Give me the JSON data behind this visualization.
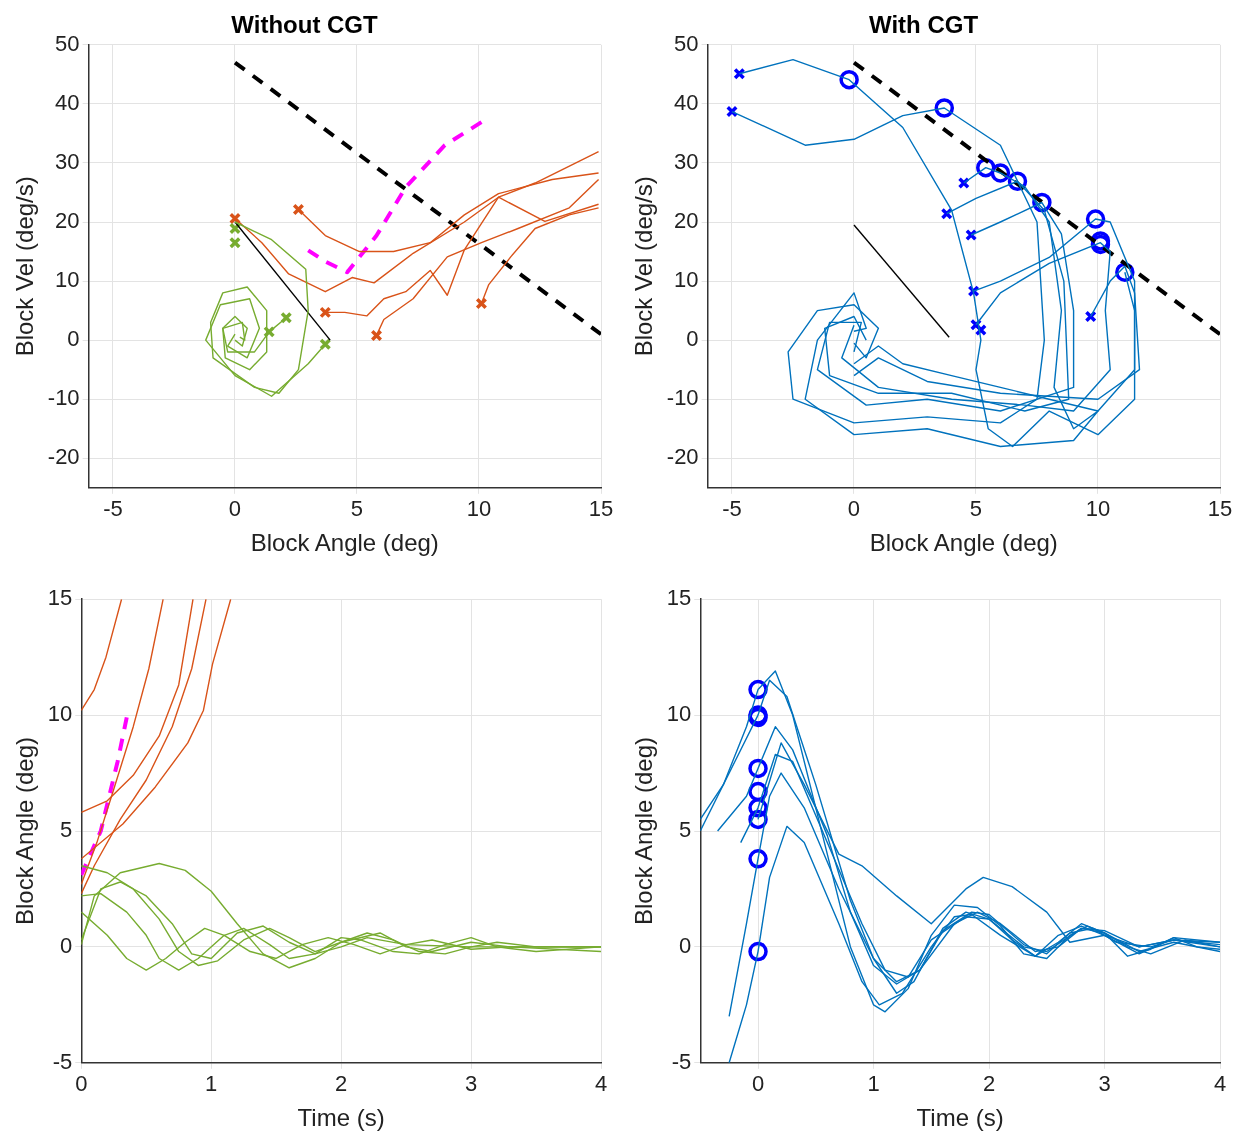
{
  "chart_data": [
    {
      "type": "line",
      "title": "Without CGT",
      "xlabel": "Block Angle (deg)",
      "ylabel": "Block Vel (deg/s)",
      "xlim": [
        -6,
        15
      ],
      "xticks": [
        -5,
        0,
        5,
        10,
        15
      ],
      "ylim": [
        -25,
        50
      ],
      "yticks": [
        -20,
        -10,
        0,
        10,
        20,
        30,
        40,
        50
      ],
      "grid": true,
      "series": [
        {
          "type": "line",
          "color": "#77ac30",
          "x": [
            0,
            1.5,
            2.9,
            3.0,
            2.6,
            1.8,
            0.8,
            -0.9,
            -1,
            -0.5,
            0.5,
            1.3,
            1.3,
            0.6,
            -0.4,
            -0.5,
            0,
            0.5,
            0.3,
            0
          ],
          "values": [
            20,
            17,
            12,
            5,
            -5,
            -9,
            -8,
            -3,
            3,
            8,
            9,
            5,
            -2,
            -5,
            -3,
            2,
            4,
            2,
            -1,
            0
          ]
        },
        {
          "type": "line",
          "color": "#77ac30",
          "x": [
            3.7,
            3.0,
            1.5,
            0,
            -1.2,
            -0.6,
            0.6,
            1.0,
            0.5,
            -0.3,
            0
          ],
          "values": [
            -0.7,
            -4,
            -9.5,
            -6,
            0,
            6,
            7,
            2,
            -3,
            -1,
            1
          ]
        },
        {
          "type": "line",
          "color": "#77ac30",
          "x": [
            2.1,
            1.4,
            0.8,
            -0.3,
            -0.5,
            0.3,
            0.4,
            0.2
          ],
          "values": [
            3.8,
            1.4,
            -2,
            -2,
            2,
            3,
            0,
            0.5
          ]
        },
        {
          "type": "line",
          "color": "#d95319",
          "x": [
            0,
            1.1,
            2.2,
            3.7,
            4.8,
            5.7,
            7.3,
            9.4,
            10.8,
            12.3,
            14.9
          ],
          "values": [
            20.6,
            16.5,
            11.2,
            8.2,
            10.6,
            9.7,
            14.7,
            20,
            24.2,
            26.6,
            31.9
          ]
        },
        {
          "type": "line",
          "color": "#d95319",
          "x": [
            2.6,
            3.7,
            5.1,
            6.5,
            8.0,
            9.4,
            10.8,
            13,
            14.9
          ],
          "values": [
            22.1,
            17.7,
            15,
            15,
            16.5,
            21.2,
            24.8,
            27.2,
            28.3
          ]
        },
        {
          "type": "line",
          "color": "#d95319",
          "x": [
            3.7,
            4.5,
            5.4,
            6.1,
            7.0,
            8.0,
            8.7,
            9.4,
            10.8,
            12.7,
            14.9
          ],
          "values": [
            4.7,
            4.7,
            4.1,
            7.0,
            8.2,
            11.8,
            7.6,
            15.3,
            24.2,
            20.1,
            23
          ]
        },
        {
          "type": "line",
          "color": "#d95319",
          "x": [
            5.8,
            6.1,
            7.3,
            8.7,
            10.1,
            11.6,
            13.7,
            14.9
          ],
          "values": [
            0.8,
            3.5,
            7.0,
            14.1,
            16.5,
            18.9,
            22.4,
            27.2
          ]
        },
        {
          "type": "line",
          "color": "#d95319",
          "x": [
            10.1,
            10.4,
            11.3,
            12.3,
            13.7,
            14.9
          ],
          "values": [
            6.2,
            9.4,
            14.1,
            18.9,
            21.2,
            22.4
          ]
        },
        {
          "type": "line",
          "color": "#000000",
          "line_style": "dashed",
          "x": [
            0,
            15
          ],
          "values": [
            47,
            1
          ]
        },
        {
          "type": "line",
          "color": "#000000",
          "x": [
            0,
            3.9
          ],
          "values": [
            20,
            0
          ]
        },
        {
          "type": "line",
          "color": "#ff00ff",
          "line_style": "dashed",
          "x": [
            3.0,
            3.7,
            4.6,
            5.8,
            7.0,
            8.6,
            10.1
          ],
          "values": [
            15.2,
            13.3,
            11.5,
            17.7,
            25.9,
            33,
            36.9
          ]
        },
        {
          "type": "scatter",
          "color": "#77ac30",
          "marker": "cross",
          "x": [
            0,
            0,
            1.4,
            2.1,
            3.7
          ],
          "values": [
            18.9,
            16.5,
            1.4,
            3.8,
            -0.7
          ]
        },
        {
          "type": "scatter",
          "color": "#d95319",
          "marker": "cross",
          "x": [
            0,
            2.6,
            3.7,
            5.8,
            10.1
          ],
          "values": [
            20.6,
            22.1,
            4.7,
            0.8,
            6.2
          ]
        }
      ]
    },
    {
      "type": "line",
      "title": "With CGT",
      "xlabel": "Block Angle (deg)",
      "ylabel": "Block Vel (deg/s)",
      "xlim": [
        -6,
        15
      ],
      "xticks": [
        -5,
        0,
        5,
        10,
        15
      ],
      "ylim": [
        -25,
        50
      ],
      "yticks": [
        -20,
        -10,
        0,
        10,
        20,
        30,
        40,
        50
      ],
      "grid": true,
      "series": [
        {
          "type": "line",
          "color": "#0072bd",
          "x": [
            -4.7,
            -2.5,
            -0.2,
            2,
            4,
            4.9,
            5.2,
            5,
            5.5,
            6.5,
            8,
            10,
            11.5,
            11.5,
            11.1
          ],
          "values": [
            45.1,
            47.5,
            44.1,
            36,
            22,
            8,
            0,
            -5,
            -15,
            -18,
            -12,
            -16,
            -10,
            5,
            11.5
          ]
        },
        {
          "type": "line",
          "color": "#0072bd",
          "x": [
            -5,
            -2,
            0,
            2,
            3.7,
            6,
            7.5,
            7.8,
            7.5,
            6,
            3,
            0,
            -2.5,
            -2.7,
            -1.5,
            0,
            1,
            0.5,
            0
          ],
          "values": [
            38.7,
            33,
            34,
            38,
            39.3,
            33,
            20,
            0,
            -10,
            -14,
            -13,
            -14,
            -10,
            -2,
            5,
            6,
            2,
            -3,
            -0.5
          ]
        },
        {
          "type": "line",
          "color": "#0072bd",
          "x": [
            4.5,
            5.4,
            6.0,
            7,
            8,
            8.5,
            8.2,
            9,
            10,
            9,
            6,
            3,
            0,
            -2,
            -1.5,
            0,
            0.5,
            0
          ],
          "values": [
            26.6,
            29.2,
            28.3,
            26,
            20,
            5,
            -8,
            -15,
            -12,
            -17,
            -18,
            -15,
            -16,
            -10,
            0,
            8,
            2,
            1.5
          ]
        },
        {
          "type": "line",
          "color": "#0072bd",
          "x": [
            3.8,
            5,
            6.7,
            7.8,
            8.6,
            8.8,
            7,
            4,
            1,
            -1,
            -1.2,
            0,
            0.5
          ],
          "values": [
            21.4,
            24,
            26.9,
            22,
            10,
            -10,
            -12,
            -9,
            -9,
            -6,
            2,
            4,
            0
          ]
        },
        {
          "type": "line",
          "color": "#0072bd",
          "x": [
            4.8,
            6,
            7.7,
            8.5,
            9,
            9,
            6,
            3,
            0.5,
            -1.5,
            -1,
            0.3,
            0
          ],
          "values": [
            17.8,
            20,
            23.3,
            18,
            5,
            -8,
            -12,
            -10,
            -11,
            -5,
            3,
            3,
            -2
          ]
        },
        {
          "type": "line",
          "color": "#0072bd",
          "x": [
            4.9,
            6,
            8,
            9.9,
            10.5,
            11.5,
            11.5,
            10,
            8,
            6,
            4,
            2,
            1,
            0
          ],
          "values": [
            8.3,
            10,
            14,
            20.5,
            20,
            10,
            -5,
            -12,
            -10,
            -8,
            -6,
            -4,
            -1,
            -4
          ]
        },
        {
          "type": "line",
          "color": "#0072bd",
          "x": [
            5.0,
            6,
            8,
            10.1,
            10.5,
            10.3,
            10.5,
            9,
            7,
            4,
            1,
            -0.5,
            0
          ],
          "values": [
            2.6,
            8,
            13,
            16.5,
            15,
            5,
            -5,
            -12,
            -11,
            -10,
            -8,
            -3,
            2.5
          ]
        },
        {
          "type": "line",
          "color": "#0072bd",
          "x": [
            9.7,
            10.5,
            11.1,
            11.5,
            11.7,
            10,
            6,
            3,
            1,
            0
          ],
          "values": [
            4,
            10,
            12.5,
            8,
            -5,
            -10,
            -9,
            -7,
            -3,
            -6
          ]
        },
        {
          "type": "line",
          "color": "#000000",
          "line_style": "dashed",
          "x": [
            0,
            15
          ],
          "values": [
            47,
            1
          ]
        },
        {
          "type": "line",
          "color": "#000000",
          "x": [
            0,
            3.9
          ],
          "values": [
            19.5,
            0.5
          ]
        },
        {
          "type": "scatter",
          "color": "#0000ff",
          "marker": "cross",
          "x": [
            -4.7,
            -5.0,
            4.5,
            3.8,
            4.8,
            4.9,
            5.0,
            5.2,
            9.7
          ],
          "values": [
            45.1,
            38.7,
            26.6,
            21.4,
            17.8,
            8.3,
            2.6,
            1.7,
            4.0
          ]
        },
        {
          "type": "scatter",
          "color": "#0000ff",
          "marker": "circle",
          "x": [
            -0.2,
            3.7,
            5.4,
            6.0,
            6.7,
            7.7,
            9.9,
            10.1,
            10.1,
            11.1
          ],
          "values": [
            44.1,
            39.3,
            29.2,
            28.3,
            26.9,
            23.3,
            20.5,
            16.8,
            16.2,
            11.5
          ]
        }
      ]
    },
    {
      "type": "line",
      "xlabel": "Time (s)",
      "ylabel": "Block Angle (deg)",
      "xlim": [
        0,
        4
      ],
      "xticks": [
        0,
        1,
        2,
        3,
        4
      ],
      "ylim": [
        -5,
        15
      ],
      "yticks": [
        -5,
        0,
        5,
        10,
        15
      ],
      "grid": true,
      "series": [
        {
          "type": "line",
          "color": "#77ac30",
          "x": [
            0,
            0.1,
            0.3,
            0.6,
            0.8,
            1.0,
            1.2,
            1.4,
            1.6,
            1.8,
            2.0,
            2.2,
            2.4,
            2.6,
            2.8,
            3.0,
            3.2,
            3.5,
            4
          ],
          "values": [
            0.1,
            2.2,
            3.2,
            3.6,
            3.3,
            2.4,
            1.0,
            -0.3,
            -0.9,
            -0.5,
            0.2,
            0.6,
            0.3,
            -0.2,
            -0.3,
            0,
            0.2,
            0,
            0
          ]
        },
        {
          "type": "line",
          "color": "#77ac30",
          "x": [
            0,
            0.2,
            0.4,
            0.6,
            0.75,
            0.9,
            1.05,
            1.25,
            1.45,
            1.6,
            1.8,
            2.0,
            2.3,
            2.5,
            2.7,
            3,
            3.3,
            4
          ],
          "values": [
            3.5,
            3.2,
            2.5,
            1.2,
            -0.2,
            -0.8,
            -0.6,
            0.3,
            0.8,
            0.4,
            -0.2,
            0.2,
            0.6,
            0,
            -0.2,
            0.2,
            0,
            0
          ]
        },
        {
          "type": "line",
          "color": "#77ac30",
          "x": [
            0,
            0.15,
            0.35,
            0.5,
            0.6,
            0.75,
            0.9,
            1.1,
            1.25,
            1.45,
            1.6,
            1.8,
            2.0,
            2.15,
            2.4,
            2.6,
            2.8,
            3.0,
            3.2,
            3.5,
            4
          ],
          "values": [
            2.2,
            2.3,
            1.5,
            0.5,
            -0.5,
            -1.0,
            -0.5,
            0.5,
            0.8,
            0.1,
            -0.5,
            -0.3,
            0.4,
            0.3,
            -0.2,
            -0.3,
            0.1,
            0.4,
            0,
            -0.2,
            0
          ]
        },
        {
          "type": "line",
          "color": "#77ac30",
          "x": [
            0,
            0.2,
            0.35,
            0.5,
            0.65,
            0.8,
            0.95,
            1.1,
            1.3,
            1.5,
            1.7,
            1.9,
            2.1,
            2.3,
            2.5,
            2.7,
            3.0,
            3.3,
            4
          ],
          "values": [
            1.5,
            0.5,
            -0.5,
            -1.0,
            -0.5,
            0.2,
            0.8,
            0.5,
            -0.2,
            -0.5,
            0.1,
            0.4,
            0.1,
            -0.3,
            0.1,
            0.3,
            -0.1,
            0,
            -0.2
          ]
        },
        {
          "type": "line",
          "color": "#77ac30",
          "x": [
            0,
            0.15,
            0.3,
            0.5,
            0.7,
            0.85,
            1.0,
            1.2,
            1.4,
            1.6,
            1.8,
            2.0,
            2.2,
            2.5,
            3.0,
            4
          ],
          "values": [
            0.3,
            2.5,
            2.8,
            2.2,
            1,
            -0.3,
            -0.5,
            0.6,
            0.9,
            0.2,
            -0.3,
            0,
            0.4,
            0.1,
            0,
            0
          ]
        },
        {
          "type": "line",
          "color": "#d95319",
          "x": [
            0,
            0.1,
            0.19,
            0.31
          ],
          "values": [
            10.2,
            11.1,
            12.5,
            15
          ]
        },
        {
          "type": "line",
          "color": "#d95319",
          "x": [
            0,
            0.2,
            0.4,
            0.6,
            0.75,
            0.86
          ],
          "values": [
            5.8,
            6.3,
            7.4,
            9.1,
            11.3,
            15
          ]
        },
        {
          "type": "line",
          "color": "#d95319",
          "x": [
            0,
            0.32,
            0.57,
            0.82,
            0.94,
            1.01,
            1.15
          ],
          "values": [
            3.8,
            5.3,
            6.9,
            8.8,
            10.2,
            12.2,
            15
          ]
        },
        {
          "type": "line",
          "color": "#d95319",
          "x": [
            0,
            0.12,
            0.25,
            0.4,
            0.52,
            0.63
          ],
          "values": [
            2.7,
            4.5,
            6.8,
            9.5,
            12,
            15
          ]
        },
        {
          "type": "line",
          "color": "#d95319",
          "x": [
            0,
            0.1,
            0.3,
            0.5,
            0.7,
            0.85,
            0.96
          ],
          "values": [
            2.3,
            3.5,
            5.5,
            7.2,
            9.5,
            12,
            15
          ]
        },
        {
          "type": "line",
          "color": "#ff00ff",
          "line_style": "dashed",
          "x": [
            0,
            0.15,
            0.28,
            0.35
          ],
          "values": [
            3.1,
            5,
            8,
            9.9
          ]
        }
      ]
    },
    {
      "type": "line",
      "xlabel": "Time (s)",
      "ylabel": "Block Angle (deg)",
      "xlim": [
        -0.5,
        4
      ],
      "xticks": [
        0,
        1,
        2,
        3,
        4
      ],
      "ylim": [
        -5,
        15
      ],
      "yticks": [
        -5,
        0,
        5,
        10,
        15
      ],
      "grid": true,
      "series": [
        {
          "type": "line",
          "color": "#0072bd",
          "x": [
            -0.5,
            -0.3,
            -0.1,
            0,
            0.15,
            0.3,
            0.5,
            0.8,
            1.0,
            1.1,
            1.3,
            1.5,
            1.7,
            1.9,
            2.1,
            2.3,
            2.5,
            2.7,
            2.85,
            3.0,
            3.2,
            3.4,
            3.6,
            3.8,
            4
          ],
          "values": [
            5.5,
            7,
            9.5,
            11.1,
            11.9,
            10,
            6,
            0,
            -2.5,
            -2.8,
            -1.8,
            0.5,
            1.8,
            1.7,
            0.9,
            -0.3,
            -0.5,
            0.5,
            0.9,
            0.6,
            -0.4,
            -0.1,
            0.4,
            0,
            -0.1
          ]
        },
        {
          "type": "line",
          "color": "#0072bd",
          "x": [
            -0.5,
            -0.2,
            0,
            0.1,
            0.25,
            0.5,
            0.8,
            1.0,
            1.2,
            1.35,
            1.6,
            1.8,
            2.0,
            2.2,
            2.4,
            2.6,
            2.8,
            3.0,
            3.2,
            3.4,
            3.7,
            4
          ],
          "values": [
            5,
            8,
            10,
            11.5,
            10.8,
            7,
            2,
            -0.5,
            -2,
            -1.5,
            0.8,
            1.5,
            1.2,
            0.3,
            -0.4,
            0.2,
            1,
            0.6,
            0,
            -0.3,
            0.3,
            0
          ]
        },
        {
          "type": "line",
          "color": "#0072bd",
          "x": [
            -0.35,
            -0.1,
            0,
            0.15,
            0.3,
            0.6,
            0.8,
            1.0,
            1.2,
            1.4,
            1.6,
            1.85,
            2.0,
            2.3,
            2.5,
            2.7,
            2.9,
            3.1,
            3.4,
            3.6,
            4
          ],
          "values": [
            5,
            6.5,
            7.7,
            9.5,
            8.5,
            4.8,
            1.5,
            -0.8,
            -1.6,
            -1,
            0.7,
            1.5,
            1.4,
            0.1,
            -0.3,
            0.6,
            0.8,
            0.2,
            0,
            0.3,
            0.1
          ]
        },
        {
          "type": "line",
          "color": "#0072bd",
          "x": [
            -0.15,
            0,
            0.15,
            0.3,
            0.6,
            0.9,
            1.1,
            1.3,
            1.5,
            1.8,
            2.0,
            2.3,
            2.5,
            2.8,
            3.0,
            3.3,
            3.6,
            4
          ],
          "values": [
            4.5,
            6.0,
            8.3,
            8,
            4.5,
            1,
            -1,
            -1.3,
            0.3,
            1.3,
            1.2,
            0,
            -0.2,
            0.8,
            0.6,
            -0.2,
            0.2,
            -0.2
          ]
        },
        {
          "type": "line",
          "color": "#0072bd",
          "x": [
            -0.25,
            -0.1,
            0,
            0.1,
            0.2,
            0.4,
            0.7,
            1.0,
            1.2,
            1.4,
            1.7,
            1.9,
            2.1,
            2.4,
            2.6,
            2.8,
            3.0,
            3.3,
            3.6,
            4
          ],
          "values": [
            -3,
            1,
            3.8,
            6.5,
            7.5,
            6,
            2.5,
            -0.5,
            -1.5,
            -1.0,
            1,
            1.5,
            1,
            -0.2,
            0,
            0.8,
            0.7,
            0,
            0.3,
            0
          ]
        },
        {
          "type": "line",
          "color": "#0072bd",
          "x": [
            -0.25,
            -0.1,
            0,
            0.1,
            0.25,
            0.4,
            0.7,
            0.9,
            1.05,
            1.25,
            1.5,
            1.7,
            1.85,
            2.1,
            2.4,
            2.6,
            2.8,
            3.0,
            3.3,
            3.6,
            4
          ],
          "values": [
            -5,
            -2.5,
            -0.2,
            3,
            5.2,
            4.5,
            1,
            -1.5,
            -2.5,
            -2,
            0,
            1.3,
            1.4,
            0.5,
            -0.4,
            0.5,
            0.9,
            0.5,
            -0.3,
            0.4,
            0.2
          ]
        },
        {
          "type": "line",
          "color": "#0072bd",
          "x": [
            0,
            0.2,
            0.4,
            0.7,
            0.9,
            1.2,
            1.5,
            1.8,
            1.95,
            2.2,
            2.5,
            2.7,
            3.0,
            3.3,
            3.6,
            4
          ],
          "values": [
            5.5,
            8.8,
            7,
            4,
            3.5,
            2.2,
            1,
            2.5,
            3,
            2.6,
            1.5,
            0.2,
            0.5,
            0,
            0.3,
            0.2
          ]
        },
        {
          "type": "scatter",
          "color": "#0000ff",
          "marker": "circle",
          "x": [
            0,
            0,
            0,
            0,
            0,
            0,
            0,
            0,
            0
          ],
          "values": [
            11.1,
            10.0,
            9.9,
            7.7,
            6.7,
            6.0,
            5.5,
            3.8,
            -0.2
          ]
        }
      ]
    }
  ]
}
